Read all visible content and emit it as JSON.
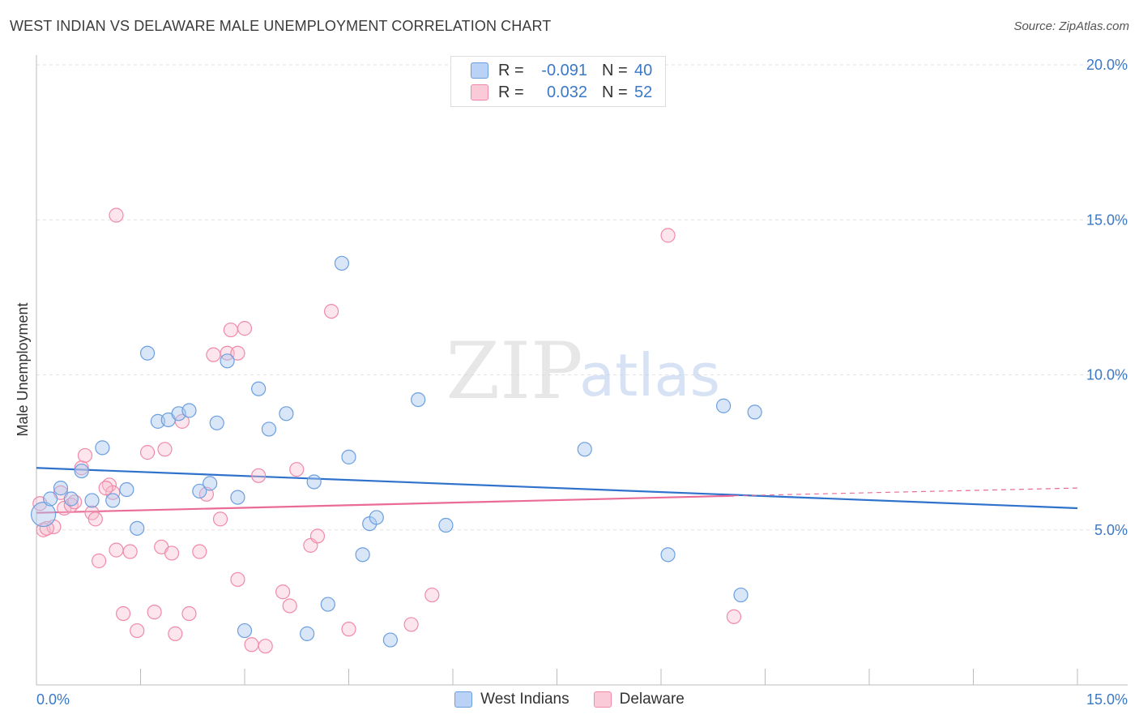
{
  "title": "WEST INDIAN VS DELAWARE MALE UNEMPLOYMENT CORRELATION CHART",
  "source": "Source: ZipAtlas.com",
  "watermark": {
    "zip": "ZIP",
    "atlas": "atlas"
  },
  "legend_top": [
    {
      "r_label": "R =",
      "r_value": "-0.091",
      "n_label": "N =",
      "n_value": "40",
      "color": "#6b9fe0"
    },
    {
      "r_label": "R =",
      "r_value": "0.032",
      "n_label": "N =",
      "n_value": "52",
      "color": "#f08aa8"
    }
  ],
  "legend_bottom": [
    {
      "label": "West Indians",
      "color": "#6b9fe0"
    },
    {
      "label": "Delaware",
      "color": "#f08aa8"
    }
  ],
  "chart_data": {
    "type": "scatter",
    "ylabel": "Male Unemployment",
    "xlim": [
      0,
      15
    ],
    "ylim": [
      0,
      20
    ],
    "x_tick_labels": [
      "0.0%",
      "15.0%"
    ],
    "y_ticks": [
      5,
      10,
      15,
      20
    ],
    "y_tick_labels": [
      "5.0%",
      "10.0%",
      "15.0%",
      "20.0%"
    ],
    "grid": true,
    "series": [
      {
        "name": "West Indians",
        "color": "#6b9fe0",
        "trend": {
          "x": [
            0,
            15
          ],
          "y": [
            7.0,
            5.7
          ]
        },
        "points": [
          [
            0.1,
            5.5
          ],
          [
            0.2,
            6.0
          ],
          [
            0.35,
            6.35
          ],
          [
            0.5,
            6.0
          ],
          [
            0.65,
            6.9
          ],
          [
            0.8,
            5.95
          ],
          [
            0.95,
            7.65
          ],
          [
            1.1,
            5.95
          ],
          [
            1.3,
            6.3
          ],
          [
            1.45,
            5.05
          ],
          [
            1.6,
            10.7
          ],
          [
            1.75,
            8.5
          ],
          [
            1.9,
            8.55
          ],
          [
            2.05,
            8.75
          ],
          [
            2.2,
            8.85
          ],
          [
            2.35,
            6.25
          ],
          [
            2.5,
            6.5
          ],
          [
            2.6,
            8.45
          ],
          [
            2.75,
            10.45
          ],
          [
            2.9,
            6.05
          ],
          [
            3.0,
            1.75
          ],
          [
            3.2,
            9.55
          ],
          [
            3.35,
            8.25
          ],
          [
            3.6,
            8.75
          ],
          [
            3.9,
            1.65
          ],
          [
            4.0,
            6.55
          ],
          [
            4.2,
            2.6
          ],
          [
            4.4,
            13.6
          ],
          [
            4.5,
            7.35
          ],
          [
            4.7,
            4.2
          ],
          [
            4.8,
            5.2
          ],
          [
            4.9,
            5.4
          ],
          [
            5.1,
            1.45
          ],
          [
            5.5,
            9.2
          ],
          [
            5.9,
            5.15
          ],
          [
            7.9,
            7.6
          ],
          [
            9.1,
            4.2
          ],
          [
            9.9,
            9.0
          ],
          [
            10.15,
            2.9
          ],
          [
            10.35,
            8.8
          ]
        ]
      },
      {
        "name": "Delaware",
        "color": "#f08aa8",
        "trend": {
          "x": [
            0,
            10.05
          ],
          "y": [
            5.55,
            6.1
          ]
        },
        "trend_dashed": {
          "x": [
            10.05,
            15
          ],
          "y": [
            6.1,
            6.35
          ]
        },
        "points": [
          [
            0.05,
            5.85
          ],
          [
            0.1,
            5.0
          ],
          [
            0.25,
            5.1
          ],
          [
            0.35,
            6.2
          ],
          [
            0.4,
            5.7
          ],
          [
            0.5,
            5.8
          ],
          [
            0.55,
            5.9
          ],
          [
            0.65,
            7.0
          ],
          [
            0.7,
            7.4
          ],
          [
            0.8,
            5.55
          ],
          [
            0.85,
            5.35
          ],
          [
            0.9,
            4.0
          ],
          [
            1.05,
            6.45
          ],
          [
            1.1,
            6.2
          ],
          [
            1.15,
            4.35
          ],
          [
            1.25,
            2.3
          ],
          [
            1.35,
            4.3
          ],
          [
            1.45,
            1.75
          ],
          [
            1.6,
            7.5
          ],
          [
            1.7,
            2.35
          ],
          [
            1.8,
            4.45
          ],
          [
            1.85,
            7.6
          ],
          [
            1.95,
            4.25
          ],
          [
            2.0,
            1.65
          ],
          [
            2.1,
            8.5
          ],
          [
            2.2,
            2.3
          ],
          [
            2.35,
            4.3
          ],
          [
            2.45,
            6.15
          ],
          [
            2.55,
            10.65
          ],
          [
            2.65,
            5.35
          ],
          [
            2.75,
            10.7
          ],
          [
            2.8,
            11.45
          ],
          [
            2.9,
            3.4
          ],
          [
            3.0,
            11.5
          ],
          [
            3.1,
            1.3
          ],
          [
            3.2,
            6.75
          ],
          [
            3.3,
            1.25
          ],
          [
            3.55,
            3.0
          ],
          [
            3.65,
            2.55
          ],
          [
            3.75,
            6.95
          ],
          [
            3.95,
            4.5
          ],
          [
            4.05,
            4.8
          ],
          [
            4.25,
            12.05
          ],
          [
            4.5,
            1.8
          ],
          [
            1.15,
            15.15
          ],
          [
            5.4,
            1.95
          ],
          [
            5.7,
            2.9
          ],
          [
            9.1,
            14.5
          ],
          [
            10.05,
            2.2
          ],
          [
            0.15,
            5.05
          ],
          [
            1.0,
            6.35
          ],
          [
            2.9,
            10.7
          ]
        ]
      }
    ]
  }
}
